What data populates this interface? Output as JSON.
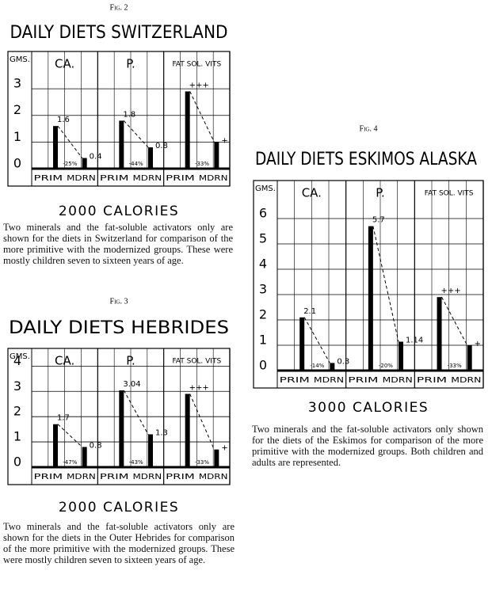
{
  "chart_data": [
    {
      "type": "bar",
      "figure_label": "Fig. 2",
      "title": "DAILY DIETS SWITZERLAND",
      "y_label": "GMS.",
      "categories": [
        "CA.",
        "P.",
        "FAT SOL. VITS"
      ],
      "series": [
        {
          "name": "PRIM",
          "color": "#000000",
          "values": [
            1.6,
            1.8,
            2.9
          ],
          "value_labels": [
            "1.6",
            "1.8",
            "+++"
          ]
        },
        {
          "name": "MDRN",
          "color": "#000000",
          "values": [
            0.4,
            0.8,
            1.0
          ],
          "value_labels": [
            "0.4",
            "0.8",
            "+"
          ]
        }
      ],
      "change_labels": [
        "-25%",
        "-44%",
        "-33%"
      ],
      "ylim": [
        0,
        4.4
      ],
      "yticks": [
        0,
        1,
        2,
        3
      ],
      "grid": true,
      "subtitle": "2000 CALORIES",
      "caption": "Two minerals and the fat-soluble activators only are shown for the diets in Switzerland for comparison of the more primitive with the modernized groups. These were mostly children seven to sixteen years of age."
    },
    {
      "type": "bar",
      "figure_label": "Fig. 3",
      "title": "DAILY DIETS HEBRIDES",
      "y_label": "GMS.",
      "categories": [
        "CA.",
        "P.",
        "FAT SOL. VITS"
      ],
      "series": [
        {
          "name": "PRIM",
          "color": "#000000",
          "values": [
            1.7,
            3.04,
            2.9
          ],
          "value_labels": [
            "1.7",
            "3.04",
            "+++"
          ]
        },
        {
          "name": "MDRN",
          "color": "#000000",
          "values": [
            0.8,
            1.3,
            0.7
          ],
          "value_labels": [
            "0.8",
            "1.3",
            "+"
          ]
        }
      ],
      "change_labels": [
        "-47%",
        "-43%",
        "-33%"
      ],
      "ylim": [
        0,
        4.7
      ],
      "yticks": [
        0,
        1,
        2,
        3,
        4
      ],
      "grid": true,
      "subtitle": "2000 CALORIES",
      "caption": "Two minerals and the fat-soluble activators only are shown for the diets in the Outer Hebrides for comparison of the more primitive with the modernized groups. These were mostly children seven to sixteen years of age."
    },
    {
      "type": "bar",
      "figure_label": "Fig. 4",
      "title": "DAILY DIETS ESKIMOS ALASKA",
      "y_label": "GMS.",
      "categories": [
        "CA.",
        "P.",
        "FAT SOL. VITS"
      ],
      "series": [
        {
          "name": "PRIM",
          "color": "#000000",
          "values": [
            2.1,
            5.7,
            2.9
          ],
          "value_labels": [
            "2.1",
            "5.7",
            "+++"
          ]
        },
        {
          "name": "MDRN",
          "color": "#000000",
          "values": [
            0.3,
            1.14,
            1.0
          ],
          "value_labels": [
            "0.3",
            "1.14",
            "+"
          ]
        }
      ],
      "change_labels": [
        "-14%",
        "-20%",
        "-33%"
      ],
      "ylim": [
        0,
        7.5
      ],
      "yticks": [
        0,
        1,
        2,
        3,
        4,
        5,
        6
      ],
      "grid": true,
      "subtitle": "3000 CALORIES",
      "caption": "Two minerals and the fat-soluble activators only shown for the diets of the Eskimos for comparison of the more primitive with the modernized groups. Both children and adults are represented."
    }
  ]
}
